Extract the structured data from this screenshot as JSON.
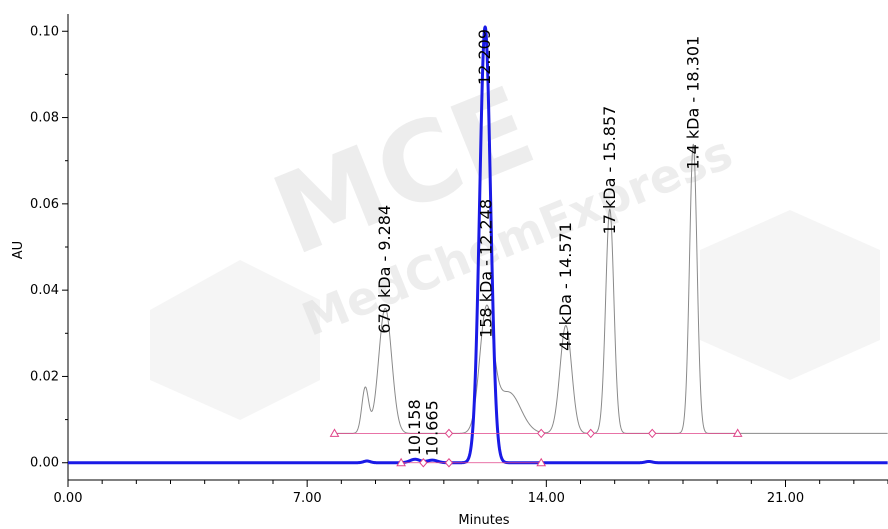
{
  "watermark": {
    "logo_text": "MCE",
    "company_text": "MedChemExpress"
  },
  "chart_data": {
    "type": "line",
    "xlabel": "Minutes",
    "ylabel": "AU",
    "xlim": [
      0,
      24
    ],
    "ylim": [
      -0.004,
      0.104
    ],
    "x_ticks": [
      0,
      7,
      14,
      21
    ],
    "x_tick_labels": [
      "0.00",
      "7.00",
      "14.00",
      "21.00"
    ],
    "y_ticks": [
      0,
      0.02,
      0.04,
      0.06,
      0.08,
      0.1
    ],
    "y_tick_labels": [
      "0.00",
      "0.02",
      "0.04",
      "0.06",
      "0.08",
      "0.10"
    ],
    "grid": false,
    "colors": {
      "sample_trace": "#1a1ae6",
      "standard_trace": "#8a8a8a",
      "integration_markers": "#e0458a"
    },
    "series": [
      {
        "role": "standard",
        "baseline": 0.0068,
        "peaks": [
          {
            "rt": 8.7,
            "height": 0.0105,
            "width": 0.1
          },
          {
            "rt": 9.284,
            "height": 0.029,
            "width": 0.19
          },
          {
            "rt": 12.248,
            "height": 0.028,
            "width": 0.2
          },
          {
            "rt": 12.9,
            "height": 0.0095,
            "width": 0.35
          },
          {
            "rt": 14.571,
            "height": 0.025,
            "width": 0.17
          },
          {
            "rt": 15.857,
            "height": 0.052,
            "width": 0.12
          },
          {
            "rt": 18.301,
            "height": 0.067,
            "width": 0.11
          }
        ],
        "markers": [
          {
            "x": 7.8,
            "shape": "triangle"
          },
          {
            "x": 11.15,
            "shape": "diamond"
          },
          {
            "x": 13.85,
            "shape": "diamond"
          },
          {
            "x": 15.3,
            "shape": "diamond"
          },
          {
            "x": 17.1,
            "shape": "diamond"
          },
          {
            "x": 19.6,
            "shape": "triangle"
          }
        ]
      },
      {
        "role": "sample",
        "baseline": 0.0,
        "peaks": [
          {
            "rt": 10.158,
            "height": 0.0008,
            "width": 0.15
          },
          {
            "rt": 10.665,
            "height": 0.0006,
            "width": 0.15
          },
          {
            "rt": 12.209,
            "height": 0.101,
            "width": 0.16
          },
          {
            "rt": 8.75,
            "height": 0.0004,
            "width": 0.1
          },
          {
            "rt": 17.0,
            "height": 0.0003,
            "width": 0.1
          }
        ],
        "markers": [
          {
            "x": 9.75,
            "shape": "triangle"
          },
          {
            "x": 10.4,
            "shape": "diamond"
          },
          {
            "x": 11.15,
            "shape": "diamond"
          },
          {
            "x": 13.85,
            "shape": "triangle"
          }
        ]
      }
    ],
    "peak_labels": [
      {
        "x": 9.284,
        "y": 0.029,
        "text": "670 kDa - 9.284"
      },
      {
        "x": 10.158,
        "y": 0.0008,
        "text": "10.158"
      },
      {
        "x": 10.665,
        "y": 0.0006,
        "text": "10.665"
      },
      {
        "x": 12.209,
        "y": 0.101,
        "text": "12.209"
      },
      {
        "x": 12.248,
        "y": 0.028,
        "text": "158 kDa - 12.248"
      },
      {
        "x": 14.571,
        "y": 0.025,
        "text": "44 kDa - 14.571"
      },
      {
        "x": 15.857,
        "y": 0.052,
        "text": "17 kDa - 15.857"
      },
      {
        "x": 18.301,
        "y": 0.067,
        "text": "1.4 kDa - 18.301"
      }
    ]
  }
}
